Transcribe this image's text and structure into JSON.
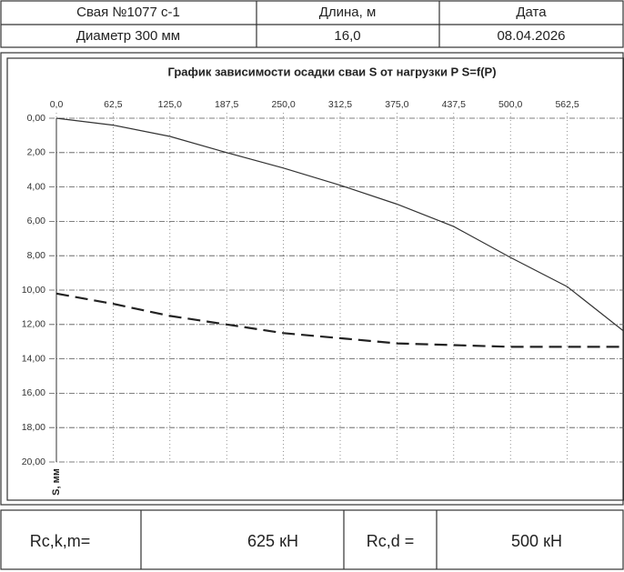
{
  "header": {
    "rows": [
      [
        "Свая №1077 с-1",
        "Длина, м",
        "Дата"
      ],
      [
        "Диаметр 300 мм",
        "16,0",
        "08.04.2026"
      ]
    ]
  },
  "chart_data": {
    "type": "line",
    "title": "График зависимости осадки сваи S от нагрузки P S=f(P)",
    "y_label": "S, мм",
    "x": [
      0,
      62.5,
      125,
      187.5,
      250,
      312.5,
      375,
      437.5,
      500,
      562.5,
      625
    ],
    "series": [
      {
        "color": "#333333",
        "dashed": false,
        "values": [
          0,
          0.4,
          1.06,
          2.0,
          2.9,
          3.9,
          5.0,
          6.3,
          8.1,
          9.8,
          12.4
        ]
      },
      {
        "color": "#222222",
        "dashed": true,
        "values": [
          10.2,
          10.8,
          11.5,
          12.0,
          12.5,
          12.8,
          13.1,
          13.2,
          13.3,
          13.3,
          13.3
        ]
      }
    ],
    "xlim": [
      0,
      625
    ],
    "xticks": [
      {
        "value": 0,
        "label": "0,0"
      },
      {
        "value": 62.5,
        "label": "62,5"
      },
      {
        "value": 125,
        "label": "125,0"
      },
      {
        "value": 187.5,
        "label": "187,5"
      },
      {
        "value": 250,
        "label": "250,0"
      },
      {
        "value": 312.5,
        "label": "312,5"
      },
      {
        "value": 375,
        "label": "375,0"
      },
      {
        "value": 437.5,
        "label": "437,5"
      },
      {
        "value": 500,
        "label": "500,0"
      },
      {
        "value": 562.5,
        "label": "562,5"
      }
    ],
    "ylim": [
      0,
      20
    ],
    "yticks": [
      {
        "value": 0,
        "label": "0,00"
      },
      {
        "value": 2,
        "label": "2,00"
      },
      {
        "value": 4,
        "label": "4,00"
      },
      {
        "value": 6,
        "label": "6,00"
      },
      {
        "value": 8,
        "label": "8,00"
      },
      {
        "value": 10,
        "label": "10,00"
      },
      {
        "value": 12,
        "label": "12,00"
      },
      {
        "value": 14,
        "label": "14,00"
      },
      {
        "value": 16,
        "label": "16,00"
      },
      {
        "value": 18,
        "label": "18,00"
      },
      {
        "value": 20,
        "label": "20,00"
      }
    ],
    "y_inverted": true,
    "x_axis_top": true,
    "grid": true
  },
  "footer": {
    "cells": [
      "Rc,k,m=",
      "625 кН",
      "Rc,d =",
      "500 кН"
    ]
  }
}
